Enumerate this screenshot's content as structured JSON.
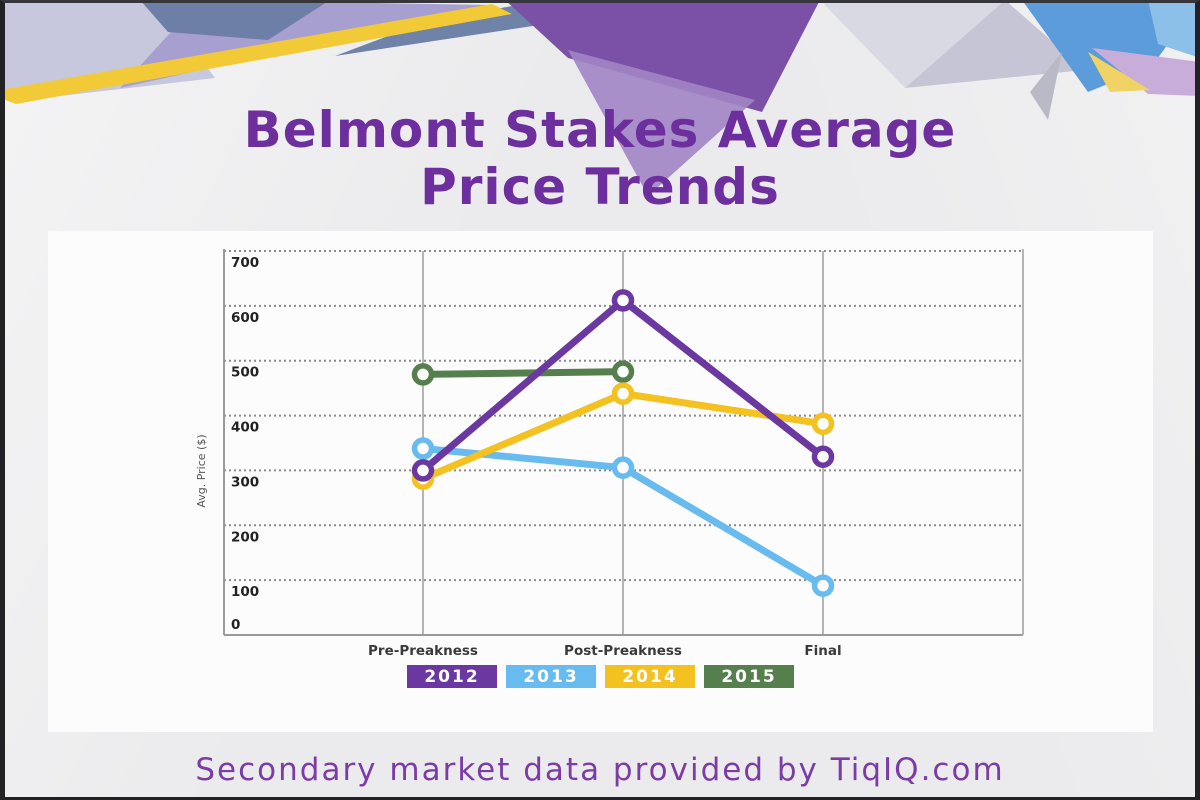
{
  "header": {
    "title_line1": "Belmont Stakes Average",
    "title_line2": "Price Trends"
  },
  "footer": {
    "text": "Secondary market data provided by TiqIQ.com"
  },
  "colors": {
    "title": "#6c2f9d",
    "footer_text": "#7b3ca6",
    "panel_background": "#fcfcfd",
    "page_background": "#ebebed",
    "axis": "#9a9a9a",
    "gridline": "#8a8a8a"
  },
  "chart_data": {
    "type": "line",
    "title": "Belmont Stakes Average Price Trends",
    "categories": [
      "Pre-Preakness",
      "Post-Preakness",
      "Final"
    ],
    "xlabel": "",
    "ylabel": "Avg. Price ($)",
    "ylim": [
      0,
      700
    ],
    "yticks": [
      0,
      100,
      200,
      300,
      400,
      500,
      600,
      700
    ],
    "grid": "horizontal-dotted",
    "legend_position": "bottom",
    "marker": "open-circle",
    "series": [
      {
        "name": "2012",
        "color": "#6b37a0",
        "values": [
          300,
          610,
          325
        ]
      },
      {
        "name": "2013",
        "color": "#67bbee",
        "values": [
          340,
          305,
          90
        ]
      },
      {
        "name": "2014",
        "color": "#f3c120",
        "values": [
          285,
          440,
          385
        ]
      },
      {
        "name": "2015",
        "color": "#55804d",
        "values": [
          475,
          480,
          null
        ]
      }
    ]
  }
}
